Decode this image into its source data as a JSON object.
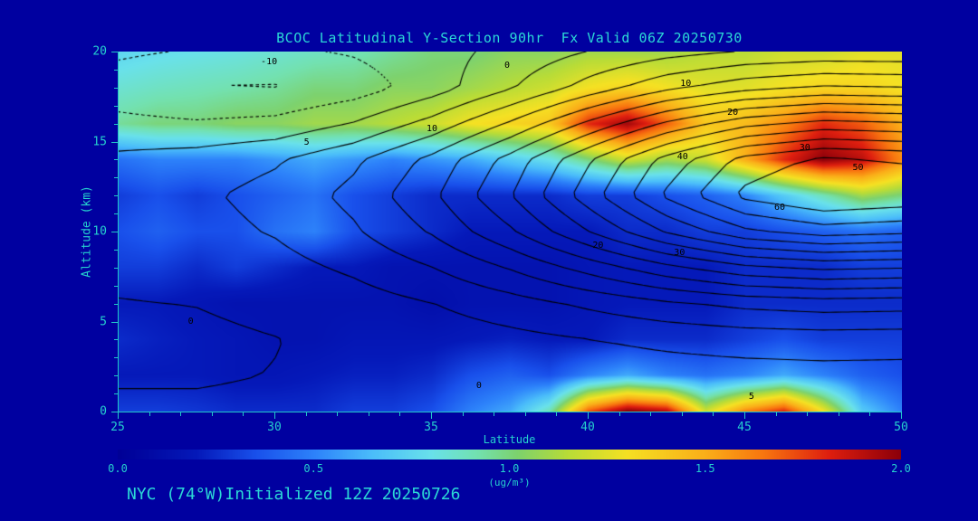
{
  "title": "BCOC Latitudinal Y-Section 90hr  Fx Valid 06Z 20250730",
  "footer": "NYC (74°W)Initialized 12Z 20250726",
  "axes": {
    "x": {
      "label": "Latitude",
      "min": 25,
      "max": 50,
      "ticks": [
        25,
        30,
        35,
        40,
        45,
        50
      ],
      "minor_step": 1
    },
    "y": {
      "label": "Altitude (km)",
      "min": 0,
      "max": 20,
      "ticks": [
        0,
        5,
        10,
        15,
        20
      ],
      "minor_step": 1
    }
  },
  "colorbar": {
    "units": "(ug/m³)",
    "min": 0.0,
    "max": 2.0,
    "ticks": [
      "0.0",
      "0.5",
      "1.0",
      "1.5",
      "2.0"
    ]
  },
  "colors": {
    "background": "#0000A0",
    "title": "#2BD8D6",
    "axis_text": "#25D0CE",
    "axis_line": "#20C8C8",
    "contour": "#000000"
  },
  "chart_data": {
    "type": "heatmap",
    "title": "BCOC Latitudinal Y-Section 90hr  Fx Valid 06Z 20250730",
    "xlabel": "Latitude",
    "ylabel": "Altitude (km)",
    "xlim": [
      25,
      50
    ],
    "ylim": [
      0,
      20
    ],
    "value_units": "ug/m³",
    "value_range": [
      0.0,
      2.0
    ],
    "x_lat": [
      25.0,
      26.25,
      27.5,
      28.75,
      30.0,
      31.25,
      32.5,
      33.75,
      35.0,
      36.25,
      37.5,
      38.75,
      40.0,
      41.25,
      42.5,
      43.75,
      45.0,
      46.25,
      47.5,
      48.75,
      50.0
    ],
    "y_alt": [
      0,
      2,
      4,
      6,
      8,
      10,
      12,
      14,
      16,
      18,
      20
    ],
    "values_note": "BCOC concentration ug/m3; rows ordered bottom (0 km) to top (20 km)",
    "values": [
      [
        0.3,
        0.3,
        0.28,
        0.25,
        0.25,
        0.25,
        0.3,
        0.3,
        0.35,
        0.5,
        0.6,
        0.9,
        1.7,
        2.0,
        1.9,
        1.2,
        1.6,
        1.8,
        1.3,
        0.7,
        0.5
      ],
      [
        0.2,
        0.2,
        0.2,
        0.18,
        0.18,
        0.2,
        0.22,
        0.22,
        0.25,
        0.35,
        0.4,
        0.35,
        0.5,
        0.6,
        0.5,
        0.45,
        0.5,
        0.6,
        0.5,
        0.4,
        0.35
      ],
      [
        0.25,
        0.22,
        0.2,
        0.18,
        0.15,
        0.15,
        0.18,
        0.18,
        0.18,
        0.2,
        0.22,
        0.2,
        0.2,
        0.25,
        0.25,
        0.25,
        0.3,
        0.35,
        0.3,
        0.3,
        0.3
      ],
      [
        0.2,
        0.2,
        0.18,
        0.15,
        0.15,
        0.15,
        0.15,
        0.15,
        0.12,
        0.15,
        0.15,
        0.15,
        0.18,
        0.2,
        0.2,
        0.2,
        0.25,
        0.25,
        0.25,
        0.25,
        0.25
      ],
      [
        0.3,
        0.3,
        0.25,
        0.3,
        0.25,
        0.2,
        0.2,
        0.15,
        0.15,
        0.15,
        0.15,
        0.15,
        0.18,
        0.2,
        0.2,
        0.2,
        0.25,
        0.25,
        0.25,
        0.3,
        0.3
      ],
      [
        0.35,
        0.4,
        0.35,
        0.35,
        0.45,
        0.5,
        0.35,
        0.3,
        0.25,
        0.2,
        0.2,
        0.2,
        0.2,
        0.25,
        0.25,
        0.3,
        0.3,
        0.35,
        0.4,
        0.45,
        0.4
      ],
      [
        0.3,
        0.35,
        0.3,
        0.35,
        0.4,
        0.45,
        0.35,
        0.3,
        0.25,
        0.25,
        0.25,
        0.25,
        0.3,
        0.3,
        0.35,
        0.4,
        0.5,
        0.7,
        0.9,
        1.1,
        1.0
      ],
      [
        0.45,
        0.5,
        0.5,
        0.5,
        0.55,
        0.6,
        0.55,
        0.5,
        0.55,
        0.6,
        0.7,
        0.8,
        1.0,
        1.2,
        1.1,
        1.2,
        1.5,
        1.8,
        2.0,
        1.9,
        1.6
      ],
      [
        0.95,
        1.0,
        1.0,
        1.05,
        1.05,
        1.1,
        1.1,
        1.15,
        1.2,
        1.3,
        1.35,
        1.4,
        1.8,
        1.95,
        1.7,
        1.4,
        1.45,
        1.6,
        1.8,
        1.7,
        1.5
      ],
      [
        0.85,
        0.88,
        0.9,
        0.92,
        0.95,
        1.0,
        1.0,
        1.05,
        1.05,
        1.1,
        1.15,
        1.2,
        1.3,
        1.35,
        1.3,
        1.25,
        1.25,
        1.3,
        1.35,
        1.35,
        1.3
      ],
      [
        0.75,
        0.78,
        0.8,
        0.82,
        0.85,
        0.88,
        0.9,
        0.95,
        1.0,
        1.0,
        1.05,
        1.05,
        1.1,
        1.1,
        1.1,
        1.15,
        1.15,
        1.2,
        1.2,
        1.25,
        1.25
      ]
    ],
    "colormap": [
      [
        0.0,
        0,
        0,
        150
      ],
      [
        0.2,
        5,
        25,
        185
      ],
      [
        0.35,
        25,
        80,
        235
      ],
      [
        0.5,
        45,
        130,
        250
      ],
      [
        0.65,
        75,
        190,
        250
      ],
      [
        0.8,
        105,
        225,
        235
      ],
      [
        0.92,
        115,
        225,
        175
      ],
      [
        1.02,
        125,
        210,
        110
      ],
      [
        1.15,
        185,
        220,
        55
      ],
      [
        1.3,
        245,
        225,
        35
      ],
      [
        1.5,
        250,
        175,
        25
      ],
      [
        1.65,
        248,
        118,
        15
      ],
      [
        1.82,
        222,
        30,
        15
      ],
      [
        2.0,
        140,
        0,
        10
      ]
    ],
    "overlay_contours": {
      "name": "black-line-contours",
      "x_lat": [
        25,
        27.5,
        30,
        32.5,
        35,
        37.5,
        40,
        42.5,
        45,
        47.5,
        50
      ],
      "y_alt": [
        0,
        2,
        4,
        6,
        8,
        10,
        12,
        14,
        16,
        18,
        20
      ],
      "values_note": "contoured scalar field; rows ordered bottom (0 km) to top (20 km); negative contours dotted",
      "values": [
        [
          0.7,
          0.7,
          0.9,
          1.2,
          1.6,
          1.9,
          2.0,
          2.2,
          2.3,
          2.3,
          2.3
        ],
        [
          -0.4,
          -0.4,
          0.1,
          0.7,
          1.5,
          2.1,
          2.6,
          3.0,
          3.2,
          3.4,
          3.3
        ],
        [
          -0.9,
          -0.8,
          -0.1,
          1.0,
          2.2,
          3.5,
          4.9,
          6.0,
          6.9,
          7.3,
          7.1
        ],
        [
          -0.2,
          0.1,
          1.0,
          2.7,
          4.9,
          7.8,
          11.0,
          14.1,
          16.4,
          17.5,
          17.1
        ],
        [
          1.1,
          1.7,
          3.2,
          5.9,
          9.9,
          15.4,
          22.0,
          28.6,
          33.8,
          36.0,
          35.2
        ],
        [
          2.2,
          3.2,
          5.4,
          9.3,
          15.5,
          24.2,
          34.9,
          45.5,
          53.9,
          57.4,
          56.2
        ],
        [
          2.9,
          4.1,
          6.7,
          11.4,
          19.0,
          29.7,
          42.7,
          55.9,
          66.3,
          70.7,
          69.1
        ],
        [
          1.1,
          2.2,
          4.4,
          9.0,
          16.4,
          26.9,
          39.4,
          51.9,
          61.8,
          66.0,
          64.5
        ],
        [
          -3.6,
          -4.4,
          -3.5,
          0.3,
          6.8,
          15.7,
          26.1,
          35.9,
          43.4,
          46.8,
          45.7
        ],
        [
          -7.9,
          -10.2,
          -10.4,
          -7.7,
          -2.4,
          4.5,
          12.0,
          18.8,
          23.3,
          25.6,
          25.0
        ],
        [
          -4.1,
          -5.5,
          -5.9,
          -4.5,
          -1.9,
          1.5,
          5.1,
          8.1,
          10.3,
          11.2,
          11.1
        ]
      ],
      "levels_start": -10,
      "levels_step": 5,
      "levels_end": 65,
      "labels": [
        {
          "v": "-10",
          "lat": 29.8,
          "alt": 19.4
        },
        {
          "v": "0",
          "lat": 37.4,
          "alt": 19.2
        },
        {
          "v": "10",
          "lat": 43.1,
          "alt": 18.2
        },
        {
          "v": "20",
          "lat": 44.6,
          "alt": 16.6
        },
        {
          "v": "10",
          "lat": 35.0,
          "alt": 15.7
        },
        {
          "v": "40",
          "lat": 43.0,
          "alt": 14.1
        },
        {
          "v": "30",
          "lat": 46.9,
          "alt": 14.6
        },
        {
          "v": "50",
          "lat": 48.6,
          "alt": 13.5
        },
        {
          "v": "60",
          "lat": 46.1,
          "alt": 11.3
        },
        {
          "v": "5",
          "lat": 31.0,
          "alt": 14.9
        },
        {
          "v": "0",
          "lat": 27.3,
          "alt": 5.0
        },
        {
          "v": "20",
          "lat": 40.3,
          "alt": 9.2
        },
        {
          "v": "30",
          "lat": 42.9,
          "alt": 8.8
        },
        {
          "v": "0",
          "lat": 36.5,
          "alt": 1.4
        },
        {
          "v": "5",
          "lat": 45.2,
          "alt": 0.8
        }
      ]
    }
  }
}
